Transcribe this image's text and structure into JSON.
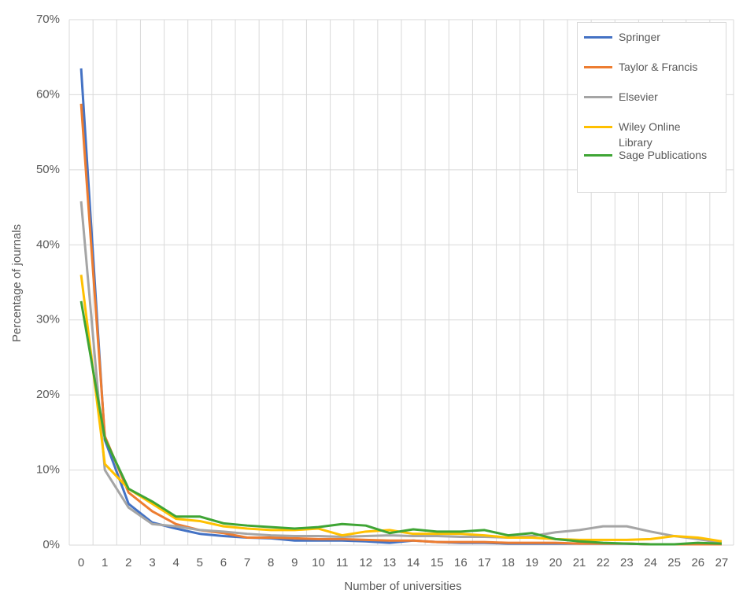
{
  "chart_data": {
    "type": "line",
    "x_label": "Number of universities",
    "y_label": "Percentage of journals",
    "categories": [
      0,
      1,
      2,
      3,
      4,
      5,
      6,
      7,
      8,
      9,
      10,
      11,
      12,
      13,
      14,
      15,
      16,
      17,
      18,
      19,
      20,
      21,
      22,
      23,
      24,
      25,
      26,
      27
    ],
    "ylim": [
      0,
      70
    ],
    "yticks": [
      {
        "value": 0,
        "label": "0%"
      },
      {
        "value": 10,
        "label": "10%"
      },
      {
        "value": 20,
        "label": "20%"
      },
      {
        "value": 30,
        "label": "30%"
      },
      {
        "value": 40,
        "label": "40%"
      },
      {
        "value": 50,
        "label": "50%"
      },
      {
        "value": 60,
        "label": "60%"
      },
      {
        "value": 70,
        "label": "70%"
      }
    ],
    "grid": true,
    "legend_position": "top-right",
    "series": [
      {
        "name": "Springer",
        "color": "#4472c4",
        "values": [
          63.5,
          14,
          5.5,
          3,
          2.2,
          1.5,
          1.2,
          1,
          0.9,
          0.6,
          0.6,
          0.6,
          0.5,
          0.3,
          0.6,
          0.4,
          0.3,
          0.3,
          0.2,
          0.2,
          0.2,
          0.2,
          0.2,
          0.2,
          0.1,
          0.1,
          0.1,
          0.1
        ]
      },
      {
        "name": "Taylor & Francis",
        "color": "#ed7d31",
        "values": [
          58.8,
          14.5,
          7,
          4.5,
          2.8,
          2,
          1.6,
          1,
          1,
          0.9,
          0.8,
          0.8,
          0.7,
          0.6,
          0.6,
          0.4,
          0.4,
          0.4,
          0.3,
          0.3,
          0.3,
          0.2,
          0.2,
          0.2,
          0.1,
          0.1,
          0.1,
          0.1
        ]
      },
      {
        "name": "Elsevier",
        "color": "#a5a5a5",
        "values": [
          45.8,
          10,
          5,
          2.8,
          2.5,
          2,
          1.8,
          1.5,
          1.3,
          1.2,
          1.2,
          1.1,
          1.2,
          1.3,
          1.2,
          1.2,
          1.1,
          1.1,
          1,
          1.2,
          1.7,
          2,
          2.5,
          2.5,
          1.8,
          1.2,
          0.8,
          0.3
        ]
      },
      {
        "name": "Wiley Online Library",
        "color": "#ffc000",
        "values": [
          36,
          10.8,
          7.5,
          5.5,
          3.5,
          3.2,
          2.5,
          2.2,
          2,
          2,
          2.2,
          1.3,
          1.8,
          2,
          1.5,
          1.5,
          1.5,
          1.3,
          1,
          1,
          0.8,
          0.7,
          0.7,
          0.7,
          0.8,
          1.2,
          1,
          0.5
        ]
      },
      {
        "name": "Sage Publications",
        "color": "#3fa535",
        "values": [
          32.5,
          14.2,
          7.5,
          5.8,
          3.8,
          3.8,
          2.9,
          2.6,
          2.4,
          2.2,
          2.4,
          2.8,
          2.6,
          1.6,
          2.1,
          1.8,
          1.8,
          2,
          1.3,
          1.6,
          0.8,
          0.5,
          0.3,
          0.2,
          0.1,
          0.1,
          0.3,
          0.2
        ]
      }
    ]
  }
}
